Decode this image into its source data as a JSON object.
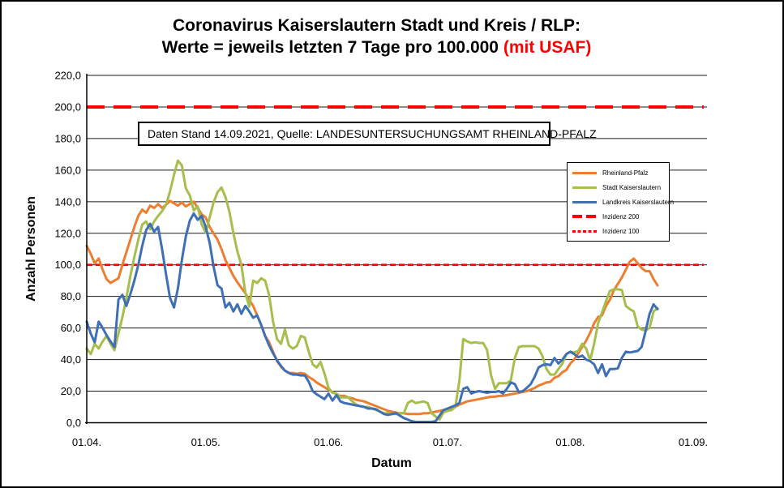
{
  "title": {
    "line1": "Coronavirus Kaiserslautern Stadt und Kreis / RLP:",
    "line2_prefix": "Werte = jeweils letzten 7 Tage pro 100.000 ",
    "line2_highlight": "(mit USAF)",
    "highlight_color": "#FF0000"
  },
  "annotation": {
    "text": "Daten Stand 14.09.2021, Quelle: LANDESUNTERSUCHUNGSAMT RHEINLAND-PFALZ"
  },
  "legend": {
    "items": [
      {
        "label": "Rheinland-Pfalz",
        "color": "#ED7D31",
        "style": "solid"
      },
      {
        "label": "Stadt Kaiserslautern",
        "color": "#A6BE4B",
        "style": "solid"
      },
      {
        "label": "Landkreis Kaiserslautern",
        "color": "#3F6FB5",
        "style": "solid"
      },
      {
        "label": "Inzidenz 200",
        "color": "#FF0000",
        "style": "dashed"
      },
      {
        "label": "Inzidenz 100",
        "color": "#FF0000",
        "style": "dotted"
      }
    ]
  },
  "chart_data": {
    "type": "line",
    "title": "Coronavirus Kaiserslautern Stadt und Kreis / RLP: Werte = jeweils letzten 7 Tage pro 100.000 (mit USAF)",
    "xlabel": "Datum",
    "ylabel": "Anzahl Personen",
    "ylim": [
      0,
      220
    ],
    "y_step": 20,
    "grid": true,
    "legend_position": "right-inside",
    "y_tick_labels": [
      "0,0",
      "20,0",
      "40,0",
      "60,0",
      "80,0",
      "100,0",
      "120,0",
      "140,0",
      "160,0",
      "180,0",
      "200,0",
      "220,0"
    ],
    "x_ticks": [
      {
        "label": "01.04.",
        "day": 0
      },
      {
        "label": "01.05.",
        "day": 30
      },
      {
        "label": "01.06.",
        "day": 61
      },
      {
        "label": "01.07.",
        "day": 91
      },
      {
        "label": "01.08.",
        "day": 122
      },
      {
        "label": "01.09.",
        "day": 153
      }
    ],
    "x_unit": "days since 01.04.2021, daily values until approx. 23.08.2021",
    "reference_lines": [
      {
        "name": "Inzidenz 200",
        "value": 200,
        "color": "#FF0000",
        "dash": "22 11",
        "width": 4
      },
      {
        "name": "Inzidenz 100",
        "value": 100,
        "color": "#FF0000",
        "dash": "7 4",
        "width": 2.8
      }
    ],
    "series": [
      {
        "name": "Rheinland-Pfalz",
        "color": "#ED7D31",
        "start_day": 0,
        "values": [
          112,
          107,
          101,
          104,
          97,
          91,
          88.5,
          90,
          91.5,
          100,
          108,
          116,
          124,
          131,
          135,
          133,
          137.5,
          136,
          138.5,
          136,
          138,
          140.5,
          139,
          137.5,
          139.5,
          137,
          138.5,
          140,
          136,
          132,
          130,
          124,
          120,
          116,
          110,
          103,
          98,
          93,
          89,
          85.5,
          82,
          78,
          74,
          68,
          62,
          55,
          51,
          45,
          39,
          35.5,
          33,
          31.5,
          31.5,
          31,
          31.5,
          31,
          29,
          27.5,
          25.5,
          24,
          22.5,
          21,
          19.5,
          18,
          17,
          17,
          16,
          15.5,
          14.5,
          14,
          13.5,
          12.5,
          11.5,
          10.5,
          9.5,
          8.5,
          7.5,
          7,
          6.5,
          6,
          6,
          5.5,
          5.5,
          5.5,
          5.5,
          6,
          6,
          6.5,
          7,
          7.5,
          8,
          8.5,
          9,
          10,
          11.5,
          12.5,
          13.5,
          14,
          14.5,
          15,
          15.5,
          16,
          16.5,
          16.5,
          17,
          17,
          17.5,
          18,
          18.5,
          19,
          19.5,
          20,
          21,
          22,
          23.5,
          24.5,
          25.5,
          26,
          28.5,
          29.5,
          32,
          33.5,
          37.5,
          40,
          44,
          48,
          52,
          57,
          63,
          67,
          68,
          74,
          78,
          84,
          88,
          92,
          97,
          102,
          104,
          101,
          98,
          96,
          96,
          91,
          87
        ]
      },
      {
        "name": "Stadt Kaiserslautern",
        "color": "#A6BE4B",
        "start_day": 0,
        "values": [
          47,
          43.5,
          50,
          47,
          51.5,
          55,
          50,
          46,
          56.5,
          67,
          79,
          93,
          105,
          116,
          125.5,
          127.5,
          122.5,
          127.5,
          131,
          134,
          138,
          146.5,
          157,
          166,
          163,
          148.5,
          144,
          134.5,
          137,
          125.5,
          120.5,
          130,
          139.5,
          146,
          149,
          143,
          133.5,
          120,
          108.5,
          100,
          82.5,
          73.5,
          90,
          88.5,
          91.5,
          90,
          81,
          64,
          53,
          50,
          59,
          49,
          47,
          48.5,
          55,
          54,
          45,
          37,
          35,
          38.5,
          31,
          22,
          19,
          18.5,
          16,
          16,
          16,
          13.5,
          11.5,
          10.5,
          10,
          10,
          9,
          8,
          7,
          6,
          6,
          5.5,
          5.5,
          6,
          6,
          12.5,
          14,
          12.5,
          13,
          13.5,
          12.5,
          6,
          4,
          2,
          6.5,
          7.5,
          8,
          10,
          26.5,
          53,
          51.5,
          50.5,
          51,
          50.5,
          50.5,
          46,
          30,
          21.5,
          25,
          25,
          25,
          27,
          41,
          48,
          48.5,
          48.5,
          48.5,
          48.5,
          47,
          42,
          34,
          30.5,
          30.5,
          34,
          37.5,
          43.5,
          45,
          44.5,
          45.5,
          50,
          47,
          39.5,
          50,
          63,
          70,
          77,
          83.5,
          84.5,
          84.5,
          84,
          74,
          72,
          70.5,
          61,
          59,
          58.5,
          60,
          70.5,
          72.5
        ]
      },
      {
        "name": "Landkreis Kaiserslautern",
        "color": "#3F6FB5",
        "start_day": 0,
        "values": [
          64,
          56.5,
          51,
          64,
          60,
          55.5,
          51.5,
          48,
          78,
          81,
          74,
          81.5,
          90,
          100,
          112,
          122,
          126,
          121,
          124,
          110,
          94,
          79,
          73,
          85,
          103,
          118,
          128,
          132.5,
          128.5,
          131,
          124,
          114,
          99,
          87,
          85,
          73,
          76,
          70.5,
          75,
          69,
          74,
          70.5,
          66.5,
          68,
          62,
          55,
          49,
          44,
          39.5,
          36,
          33,
          31.5,
          30.5,
          30.5,
          30,
          30,
          26,
          20,
          18,
          16.5,
          15,
          18.5,
          14,
          17.5,
          13.5,
          12.5,
          12,
          11.5,
          11,
          10.5,
          10,
          9,
          9,
          8.5,
          7,
          5.5,
          5,
          5.5,
          6,
          4.5,
          3,
          2,
          1,
          0.5,
          0.5,
          0.5,
          0.5,
          0.5,
          1,
          4.5,
          8,
          9,
          10,
          11,
          12.5,
          21.5,
          22.5,
          18.5,
          19.5,
          20,
          19.5,
          19,
          19.5,
          19.5,
          20,
          18.5,
          21.5,
          25.5,
          24.5,
          19.5,
          20,
          22,
          24.5,
          29,
          35,
          36.5,
          37,
          36.5,
          41,
          37.5,
          40,
          43.5,
          45,
          43.5,
          41.5,
          42.5,
          40,
          39,
          37,
          31.5,
          37,
          29.5,
          34,
          34,
          34.5,
          41,
          45,
          44.5,
          45,
          45.5,
          48,
          58,
          69,
          75,
          72
        ]
      }
    ]
  }
}
